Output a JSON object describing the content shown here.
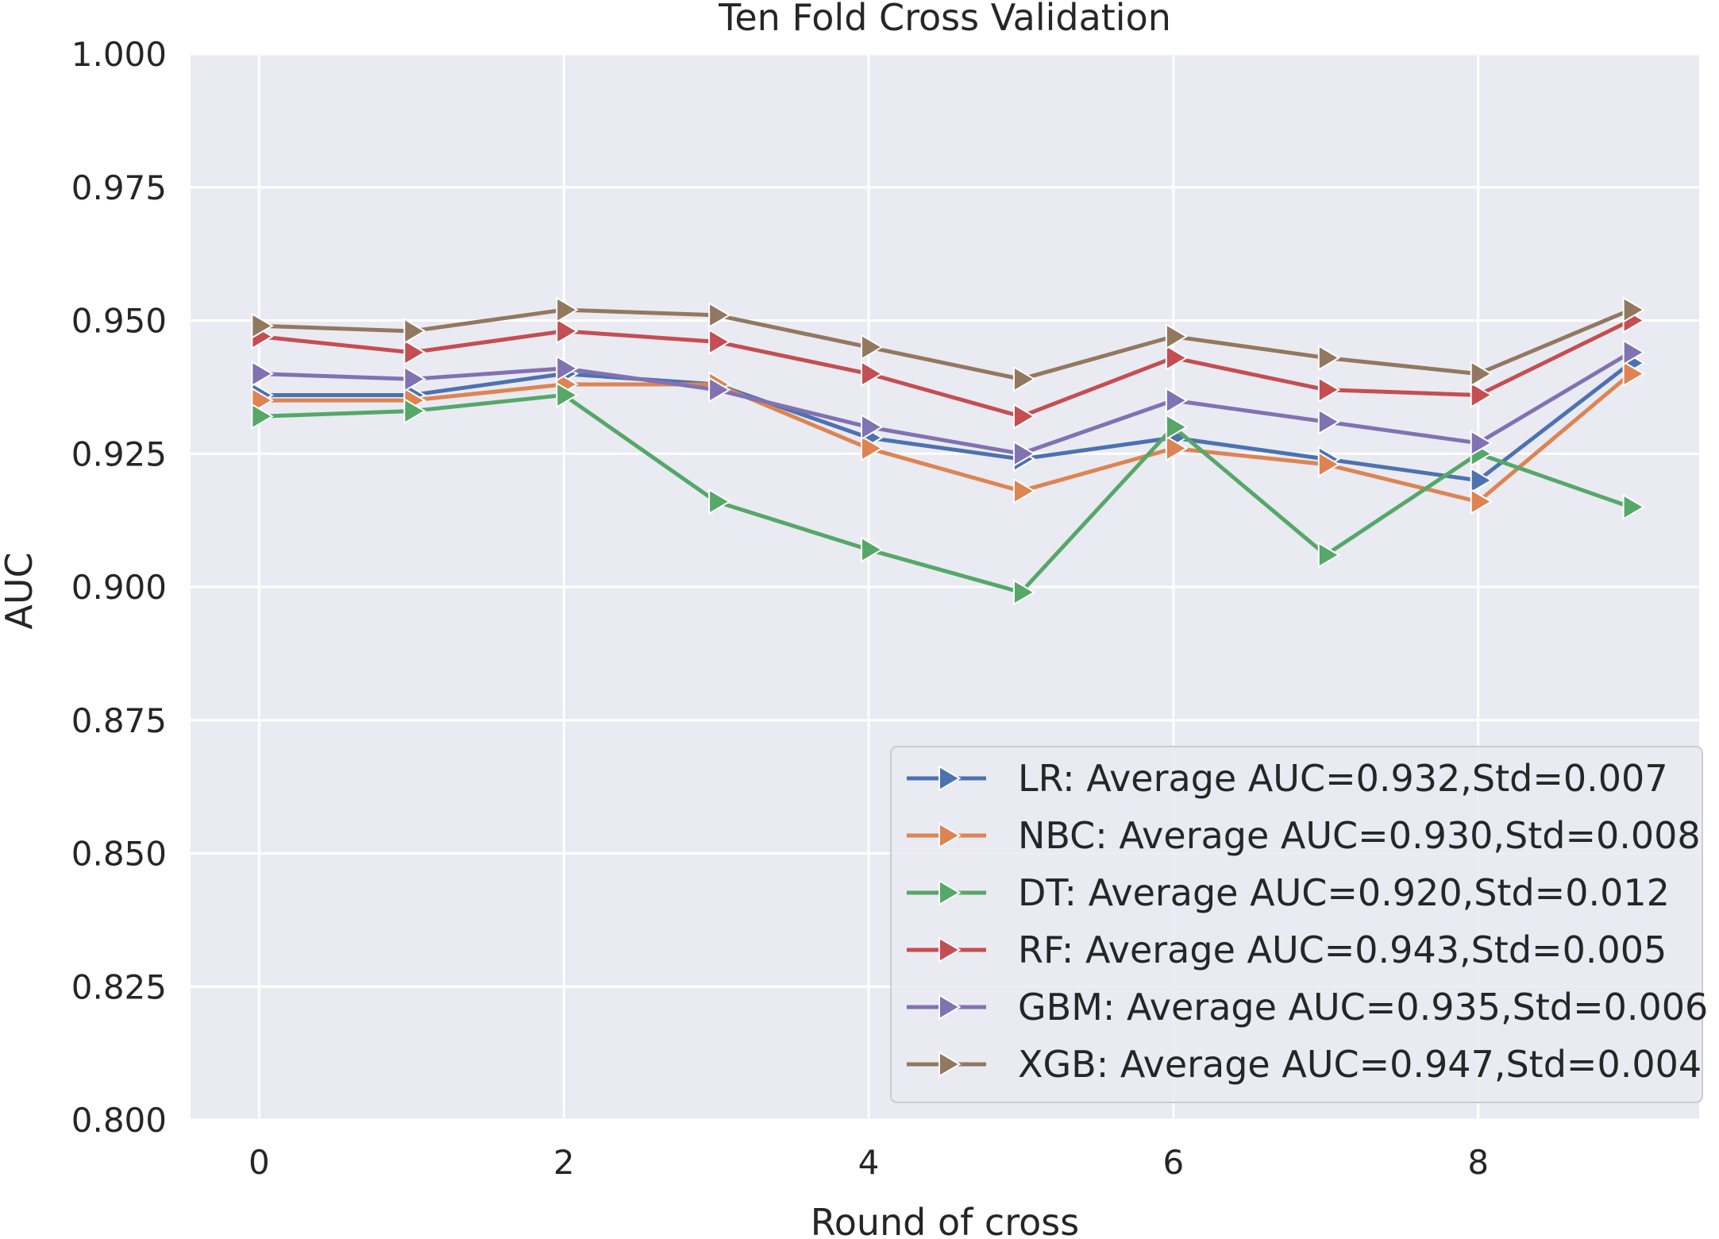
{
  "chart_data": {
    "type": "line",
    "title": "Ten Fold Cross Validation",
    "xlabel": "Round of cross",
    "ylabel": "AUC",
    "x": [
      0,
      1,
      2,
      3,
      4,
      5,
      6,
      7,
      8,
      9
    ],
    "xlim": [
      -0.45,
      9.45
    ],
    "ylim": [
      0.8,
      1.0
    ],
    "xticks": [
      0,
      2,
      4,
      6,
      8
    ],
    "yticks": [
      0.8,
      0.825,
      0.85,
      0.875,
      0.9,
      0.925,
      0.95,
      0.975,
      1.0
    ],
    "ytick_labels": [
      "0.800",
      "0.825",
      "0.850",
      "0.875",
      "0.900",
      "0.925",
      "0.950",
      "0.975",
      "1.000"
    ],
    "grid": true,
    "legend_position": "bottom-right",
    "series": [
      {
        "name": "LR",
        "label": "LR: Average AUC=0.932,Std=0.007",
        "color": "#4C72B0",
        "values": [
          0.936,
          0.936,
          0.94,
          0.938,
          0.928,
          0.924,
          0.928,
          0.924,
          0.92,
          0.942
        ]
      },
      {
        "name": "NBC",
        "label": "NBC: Average AUC=0.930,Std=0.008",
        "color": "#DD8452",
        "values": [
          0.935,
          0.935,
          0.938,
          0.938,
          0.926,
          0.918,
          0.926,
          0.923,
          0.916,
          0.94
        ]
      },
      {
        "name": "DT",
        "label": "DT: Average AUC=0.920,Std=0.012",
        "color": "#55A868",
        "values": [
          0.932,
          0.933,
          0.936,
          0.916,
          0.907,
          0.899,
          0.93,
          0.906,
          0.925,
          0.915
        ]
      },
      {
        "name": "RF",
        "label": "RF: Average AUC=0.943,Std=0.005",
        "color": "#C44E52",
        "values": [
          0.947,
          0.944,
          0.948,
          0.946,
          0.94,
          0.932,
          0.943,
          0.937,
          0.936,
          0.95
        ]
      },
      {
        "name": "GBM",
        "label": "GBM: Average AUC=0.935,Std=0.006",
        "color": "#8172B3",
        "values": [
          0.94,
          0.939,
          0.941,
          0.937,
          0.93,
          0.925,
          0.935,
          0.931,
          0.927,
          0.944
        ]
      },
      {
        "name": "XGB",
        "label": "XGB: Average AUC=0.947,Std=0.004",
        "color": "#937860",
        "values": [
          0.949,
          0.948,
          0.952,
          0.951,
          0.945,
          0.939,
          0.947,
          0.943,
          0.94,
          0.952
        ]
      }
    ]
  },
  "style": {
    "plot_background": "#EAEAF2",
    "grid_color": "#FFFFFF",
    "text_color": "#262626",
    "legend_border": "#CCCCCC"
  }
}
